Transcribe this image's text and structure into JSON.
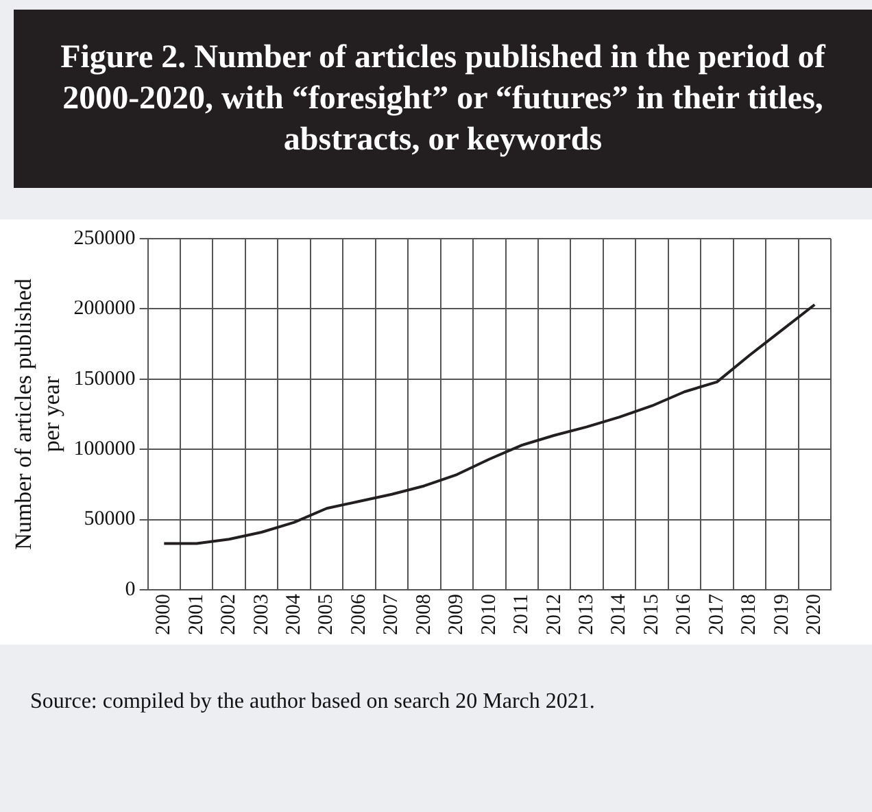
{
  "chart_data": {
    "type": "line",
    "title": "Figure 2. Number of articles published in the period of 2000-2020, with “foresight” or “futures” in their titles, abstracts, or keywords",
    "ylabel": "Number of articles published per year",
    "categories": [
      "2000",
      "2001",
      "2002",
      "2003",
      "2004",
      "2005",
      "2006",
      "2007",
      "2008",
      "2009",
      "2010",
      "2011",
      "2012",
      "2013",
      "2014",
      "2015",
      "2016",
      "2017",
      "2018",
      "2019",
      "2020"
    ],
    "series": [
      {
        "color": "#231f20",
        "values": [
          33000,
          33000,
          36000,
          41000,
          48000,
          58000,
          63000,
          68000,
          74000,
          82000,
          93000,
          103000,
          110000,
          116000,
          123000,
          131000,
          141000,
          148000,
          167000,
          185000,
          203000
        ]
      }
    ],
    "ylim": [
      0,
      250000
    ],
    "yticks": [
      0,
      50000,
      100000,
      150000,
      200000,
      250000
    ],
    "grid": true,
    "legend": false,
    "marker": "none",
    "line_style": "solid",
    "annotations": [
      "Source: compiled by the author based on search 20 March 2021."
    ]
  }
}
